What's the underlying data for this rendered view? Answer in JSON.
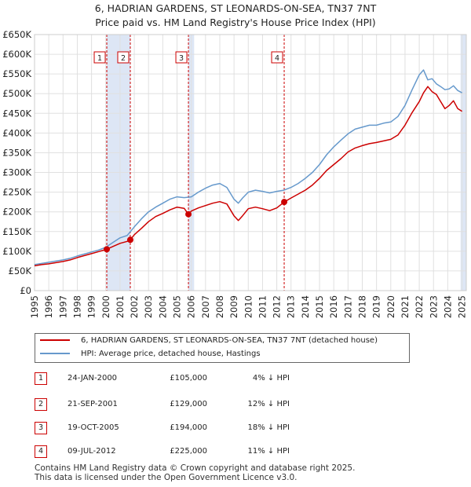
{
  "title_line1": "6, HADRIAN GARDENS, ST LEONARDS-ON-SEA, TN37 7NT",
  "title_line2": "Price paid vs. HM Land Registry's House Price Index (HPI)",
  "colors": {
    "property": "#cc0000",
    "hpi": "#6699cc",
    "band": "#dde6f5",
    "marker_line": "#cc0000"
  },
  "chart_data": {
    "type": "line",
    "title": "6, HADRIAN GARDENS, ST LEONARDS-ON-SEA, TN37 7NT — Price paid vs. HM Land Registry's House Price Index (HPI)",
    "xlim": [
      1995,
      2025.3
    ],
    "ylim": [
      0,
      650000
    ],
    "y_ticks": [
      0,
      50000,
      100000,
      150000,
      200000,
      250000,
      300000,
      350000,
      400000,
      450000,
      500000,
      550000,
      600000,
      650000
    ],
    "y_tick_labels": [
      "£0",
      "£50K",
      "£100K",
      "£150K",
      "£200K",
      "£250K",
      "£300K",
      "£350K",
      "£400K",
      "£450K",
      "£500K",
      "£550K",
      "£600K",
      "£650K"
    ],
    "x_ticks": [
      1995,
      1996,
      1997,
      1998,
      1999,
      2000,
      2001,
      2002,
      2003,
      2004,
      2005,
      2006,
      2007,
      2008,
      2009,
      2010,
      2011,
      2012,
      2013,
      2014,
      2015,
      2016,
      2017,
      2018,
      2019,
      2020,
      2021,
      2022,
      2023,
      2024,
      2025
    ],
    "series": [
      {
        "name": "6, HADRIAN GARDENS, ST LEONARDS-ON-SEA, TN37 7NT (detached house)",
        "color": "#cc0000",
        "x": [
          1995.0,
          1995.5,
          1996.0,
          1996.5,
          1997.0,
          1997.5,
          1998.0,
          1998.5,
          1999.0,
          1999.5,
          2000.07,
          2000.5,
          2001.0,
          2001.5,
          2001.72,
          2002.0,
          2002.5,
          2003.0,
          2003.5,
          2004.0,
          2004.5,
          2005.0,
          2005.5,
          2005.8,
          2006.0,
          2006.5,
          2007.0,
          2007.5,
          2008.0,
          2008.5,
          2009.0,
          2009.3,
          2009.6,
          2010.0,
          2010.5,
          2011.0,
          2011.5,
          2012.0,
          2012.52,
          2013.0,
          2013.5,
          2014.0,
          2014.5,
          2015.0,
          2015.5,
          2016.0,
          2016.5,
          2017.0,
          2017.5,
          2018.0,
          2018.5,
          2019.0,
          2019.5,
          2020.0,
          2020.5,
          2021.0,
          2021.5,
          2022.0,
          2022.3,
          2022.6,
          2022.9,
          2023.2,
          2023.5,
          2023.8,
          2024.1,
          2024.4,
          2024.7,
          2025.0
        ],
        "values": [
          63000,
          66000,
          68000,
          71000,
          74000,
          78000,
          84000,
          89000,
          94000,
          99000,
          105000,
          112000,
          120000,
          125000,
          129000,
          142000,
          158000,
          175000,
          188000,
          196000,
          205000,
          212000,
          209000,
          194000,
          202000,
          210000,
          216000,
          222000,
          226000,
          220000,
          190000,
          178000,
          190000,
          208000,
          212000,
          208000,
          203000,
          210000,
          225000,
          235000,
          245000,
          255000,
          268000,
          285000,
          305000,
          320000,
          335000,
          352000,
          362000,
          368000,
          373000,
          376000,
          380000,
          384000,
          395000,
          420000,
          452000,
          480000,
          502000,
          518000,
          505000,
          498000,
          480000,
          462000,
          470000,
          482000,
          462000,
          455000
        ]
      },
      {
        "name": "HPI: Average price, detached house, Hastings",
        "color": "#6699cc",
        "x": [
          1995.0,
          1995.5,
          1996.0,
          1996.5,
          1997.0,
          1997.5,
          1998.0,
          1998.5,
          1999.0,
          1999.5,
          2000.0,
          2000.5,
          2001.0,
          2001.5,
          2002.0,
          2002.5,
          2003.0,
          2003.5,
          2004.0,
          2004.5,
          2005.0,
          2005.5,
          2006.0,
          2006.5,
          2007.0,
          2007.5,
          2008.0,
          2008.5,
          2009.0,
          2009.3,
          2009.6,
          2010.0,
          2010.5,
          2011.0,
          2011.5,
          2012.0,
          2012.5,
          2013.0,
          2013.5,
          2014.0,
          2014.5,
          2015.0,
          2015.5,
          2016.0,
          2016.5,
          2017.0,
          2017.5,
          2018.0,
          2018.5,
          2019.0,
          2019.5,
          2020.0,
          2020.5,
          2021.0,
          2021.5,
          2022.0,
          2022.3,
          2022.6,
          2022.9,
          2023.2,
          2023.5,
          2023.8,
          2024.1,
          2024.4,
          2024.7,
          2025.0
        ],
        "values": [
          66000,
          69000,
          72000,
          75000,
          78000,
          82000,
          88000,
          93000,
          98000,
          103000,
          110000,
          122000,
          134000,
          140000,
          162000,
          182000,
          200000,
          212000,
          222000,
          232000,
          238000,
          236000,
          238000,
          250000,
          260000,
          268000,
          272000,
          262000,
          232000,
          222000,
          235000,
          250000,
          255000,
          252000,
          248000,
          252000,
          255000,
          262000,
          272000,
          285000,
          300000,
          320000,
          345000,
          365000,
          382000,
          398000,
          410000,
          415000,
          420000,
          420000,
          425000,
          428000,
          442000,
          470000,
          510000,
          548000,
          560000,
          535000,
          538000,
          525000,
          518000,
          510000,
          512000,
          520000,
          508000,
          502000
        ]
      }
    ],
    "transactions": [
      {
        "id": "1",
        "x": 2000.07,
        "value": 105000,
        "date": "24-JAN-2000",
        "price": "£105,000",
        "hpi_diff": "4% ↓ HPI"
      },
      {
        "id": "2",
        "x": 2001.72,
        "value": 129000,
        "date": "21-SEP-2001",
        "price": "£129,000",
        "hpi_diff": "12% ↓ HPI"
      },
      {
        "id": "3",
        "x": 2005.8,
        "value": 194000,
        "date": "19-OCT-2005",
        "price": "£194,000",
        "hpi_diff": "18% ↓ HPI"
      },
      {
        "id": "4",
        "x": 2012.52,
        "value": 225000,
        "date": "09-JUL-2012",
        "price": "£225,000",
        "hpi_diff": "11% ↓ HPI"
      }
    ],
    "shaded_bands": [
      [
        2000.07,
        2001.72
      ],
      [
        2005.8,
        2006.2
      ],
      [
        2024.9,
        2025.3
      ]
    ],
    "legend_position": "below"
  },
  "legend": {
    "property_label": "6, HADRIAN GARDENS, ST LEONARDS-ON-SEA, TN37 7NT (detached house)",
    "hpi_label": "HPI: Average price, detached house, Hastings"
  },
  "table": [
    {
      "id": "1",
      "date": "24-JAN-2000",
      "price": "£105,000",
      "hpi": "4% ↓ HPI"
    },
    {
      "id": "2",
      "date": "21-SEP-2001",
      "price": "£129,000",
      "hpi": "12% ↓ HPI"
    },
    {
      "id": "3",
      "date": "19-OCT-2005",
      "price": "£194,000",
      "hpi": "18% ↓ HPI"
    },
    {
      "id": "4",
      "date": "09-JUL-2012",
      "price": "£225,000",
      "hpi": "11% ↓ HPI"
    }
  ],
  "footer": {
    "line1": "Contains HM Land Registry data © Crown copyright and database right 2025.",
    "line2": "This data is licensed under the Open Government Licence v3.0."
  }
}
